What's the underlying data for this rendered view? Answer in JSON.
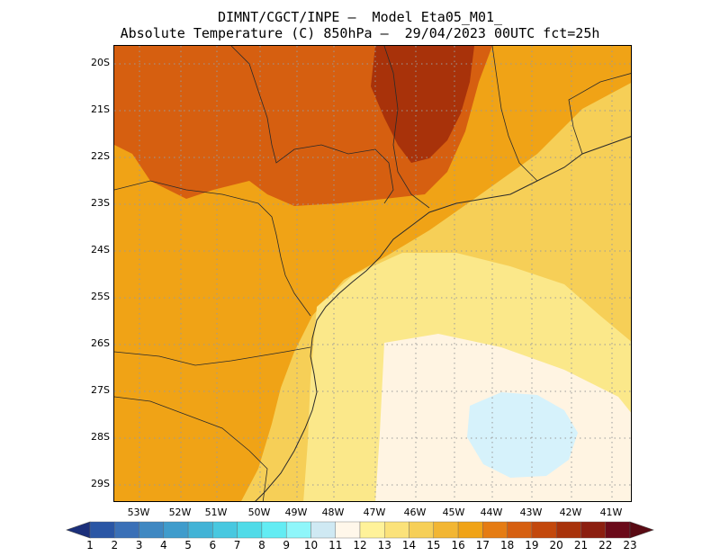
{
  "header": {
    "title_line1": "DIMNT/CGCT/INPE –  Model Eta05_M01_",
    "title_line2": "Absolute Temperature (C) 850hPa –  29/04/2023 00UTC fct=25h"
  },
  "map": {
    "lat_labels": [
      "20S",
      "21S",
      "22S",
      "23S",
      "24S",
      "25S",
      "26S",
      "27S",
      "28S",
      "29S"
    ],
    "lon_labels": [
      "53W",
      "52W",
      "51W",
      "50W",
      "49W",
      "48W",
      "47W",
      "46W",
      "45W",
      "44W",
      "43W",
      "42W",
      "41W"
    ],
    "grid": "dotted",
    "colors": {
      "warmest_region": "#a8320a",
      "hot": "#d65f10",
      "warm": "#f0a316",
      "mild": "#f6cf57",
      "cool": "#fbe88a",
      "coolest_ocean": "#fff4e2",
      "cold_patch": "#d6f2fb",
      "coastline": "#2a2a2a",
      "gridline": "#9a9a9a"
    }
  },
  "colorbar": {
    "labels": [
      "1",
      "2",
      "3",
      "4",
      "5",
      "6",
      "7",
      "8",
      "9",
      "10",
      "11",
      "12",
      "13",
      "14",
      "15",
      "16",
      "17",
      "18",
      "19",
      "20",
      "21",
      "22",
      "23"
    ],
    "colors": [
      "#1f3f8f",
      "#2a56a5",
      "#3a70b7",
      "#3f88c2",
      "#3f9ccc",
      "#42b3d6",
      "#48c8e0",
      "#50dbe8",
      "#63ecf3",
      "#8ff6fa",
      "#cfe9f3",
      "#fff7ea",
      "#fff299",
      "#fbe27a",
      "#f6cf57",
      "#f2b633",
      "#f0a316",
      "#e57c13",
      "#d65f10",
      "#c3480c",
      "#a8320a",
      "#8c1f10",
      "#6b0a1a"
    ],
    "left_arrow_color": "#1b2f7a",
    "right_arrow_color": "#5a0b14"
  }
}
